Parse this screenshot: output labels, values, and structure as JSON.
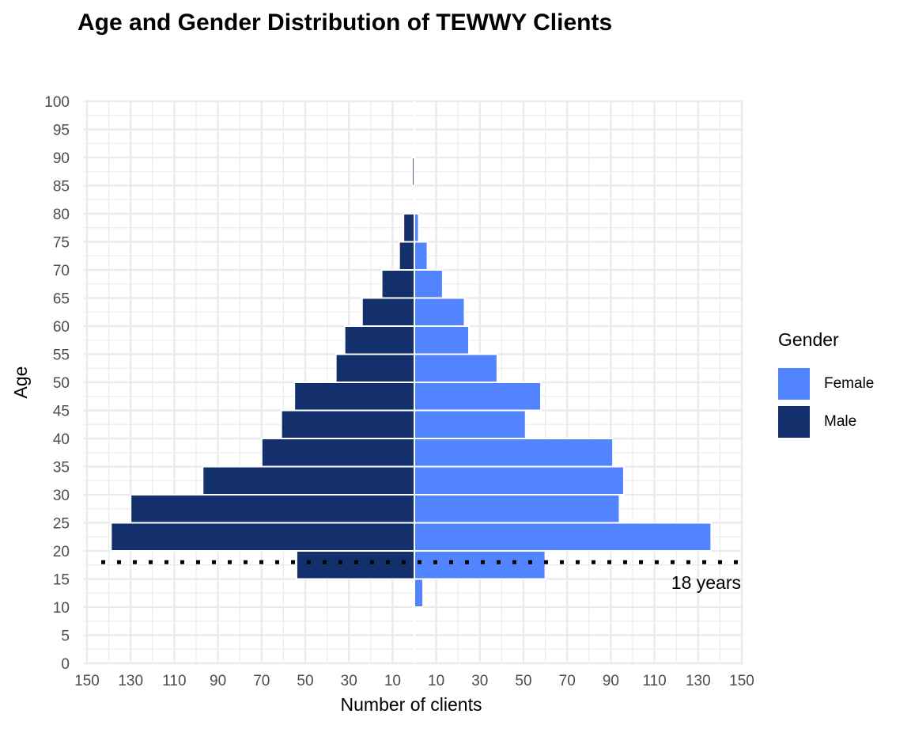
{
  "chart_data": {
    "type": "bar",
    "orientation": "horizontal-population-pyramid",
    "title": "Age and Gender Distribution of TEWWY Clients",
    "xlabel": "Number of clients",
    "ylabel": "Age",
    "xlim": [
      -150,
      150
    ],
    "ylim": [
      0,
      100
    ],
    "x_tick_labels": [
      "150",
      "130",
      "110",
      "90",
      "70",
      "50",
      "30",
      "10",
      "10",
      "30",
      "50",
      "70",
      "90",
      "110",
      "130",
      "150"
    ],
    "x_tick_values": [
      -150,
      -130,
      -110,
      -90,
      -70,
      -50,
      -30,
      -10,
      10,
      30,
      50,
      70,
      90,
      110,
      130,
      150
    ],
    "y_ticks": [
      0,
      5,
      10,
      15,
      20,
      25,
      30,
      35,
      40,
      45,
      50,
      55,
      60,
      65,
      70,
      75,
      80,
      85,
      90,
      95,
      100
    ],
    "age_bins": [
      {
        "from": 10,
        "to": 15
      },
      {
        "from": 15,
        "to": 20
      },
      {
        "from": 20,
        "to": 25
      },
      {
        "from": 25,
        "to": 30
      },
      {
        "from": 30,
        "to": 35
      },
      {
        "from": 35,
        "to": 40
      },
      {
        "from": 40,
        "to": 45
      },
      {
        "from": 45,
        "to": 50
      },
      {
        "from": 50,
        "to": 55
      },
      {
        "from": 55,
        "to": 60
      },
      {
        "from": 60,
        "to": 65
      },
      {
        "from": 65,
        "to": 70
      },
      {
        "from": 70,
        "to": 75
      },
      {
        "from": 75,
        "to": 80
      },
      {
        "from": 80,
        "to": 85
      },
      {
        "from": 85,
        "to": 90
      }
    ],
    "series": [
      {
        "name": "Female",
        "color": "#5384ff",
        "side": "right",
        "values": [
          4,
          60,
          136,
          94,
          96,
          91,
          51,
          58,
          38,
          25,
          23,
          13,
          6,
          2,
          0,
          0
        ]
      },
      {
        "name": "Male",
        "color": "#132f6c",
        "side": "left",
        "values": [
          0,
          54,
          139,
          130,
          97,
          70,
          61,
          55,
          36,
          32,
          24,
          15,
          7,
          5,
          0,
          1
        ]
      }
    ],
    "reference_line": {
      "y": 18,
      "style": "dotted",
      "label": "18 years"
    },
    "legend": {
      "title": "Gender",
      "position": "right"
    },
    "grid": true
  }
}
